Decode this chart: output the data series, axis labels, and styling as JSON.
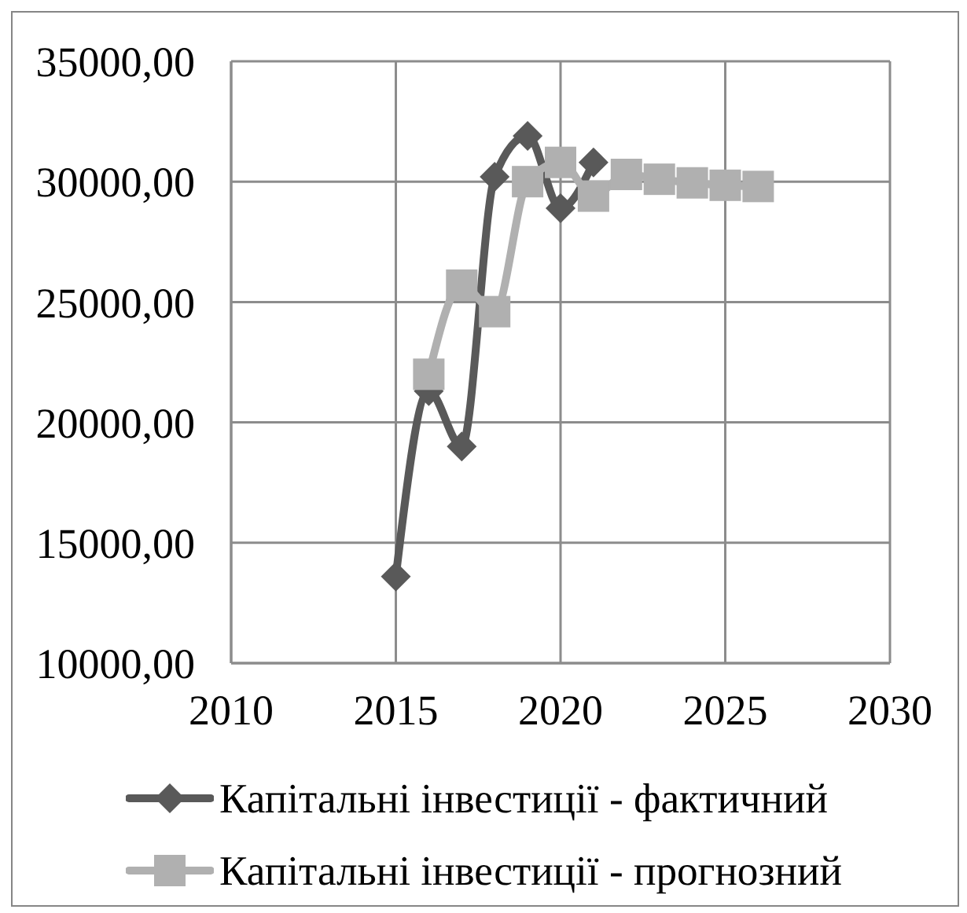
{
  "chart_data": {
    "type": "line",
    "series": [
      {
        "name": "Капітальні інвестиції - фактичний",
        "color": "#595959",
        "marker": "diamond",
        "x": [
          2015,
          2016,
          2017,
          2018,
          2019,
          2020,
          2021
        ],
        "values": [
          13600,
          21300,
          19000,
          30200,
          31900,
          28900,
          30800
        ]
      },
      {
        "name": "Капітальні інвестиції - прогнозний",
        "color": "#b0b0b0",
        "marker": "square",
        "x": [
          2016,
          2017,
          2018,
          2019,
          2020,
          2021,
          2022,
          2023,
          2024,
          2025,
          2026
        ],
        "values": [
          22000,
          25700,
          24600,
          30000,
          30800,
          29400,
          30300,
          30100,
          29950,
          29850,
          29800
        ]
      }
    ],
    "xlim": [
      2010,
      2030
    ],
    "xticks": [
      2010,
      2015,
      2020,
      2025,
      2030
    ],
    "ylim": [
      10000,
      35000
    ],
    "yticks": [
      {
        "value": 10000,
        "label": "10000,00"
      },
      {
        "value": 15000,
        "label": "15000,00"
      },
      {
        "value": 20000,
        "label": "20000,00"
      },
      {
        "value": 25000,
        "label": "25000,00"
      },
      {
        "value": 30000,
        "label": "30000,00"
      },
      {
        "value": 35000,
        "label": "35000,00"
      }
    ],
    "grid": true,
    "legend": "bottom",
    "line_style": "solid"
  }
}
